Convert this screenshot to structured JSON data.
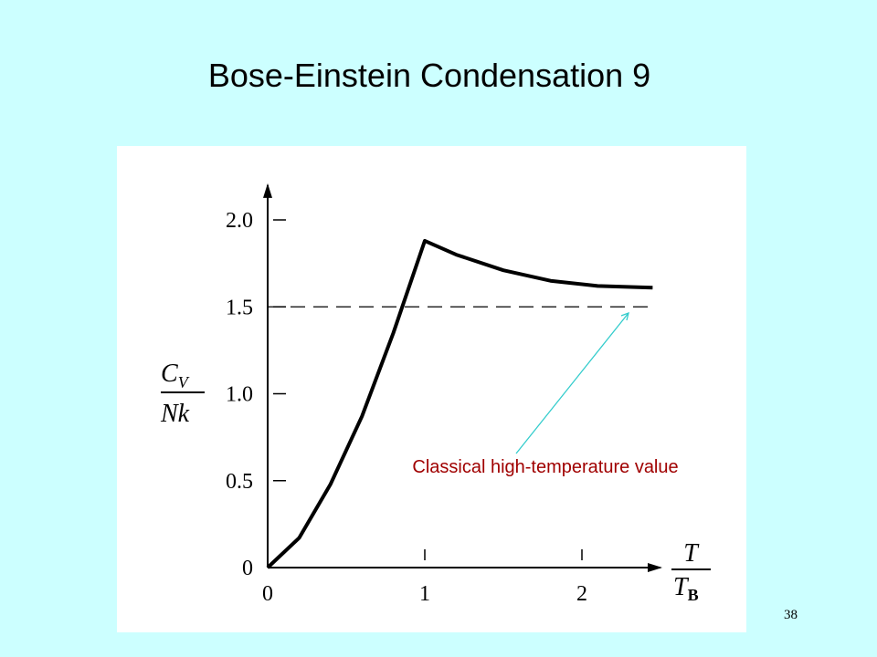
{
  "title": "Bose-Einstein Condensation 9",
  "page_number": "38",
  "chart_data": {
    "type": "line",
    "x": [
      0,
      0.2,
      0.4,
      0.6,
      0.8,
      1.0,
      1.2,
      1.5,
      1.8,
      2.1,
      2.45
    ],
    "values": [
      0,
      0.17,
      0.48,
      0.87,
      1.35,
      1.88,
      1.8,
      1.71,
      1.65,
      1.62,
      1.61
    ],
    "color": "#000000",
    "reference_line": 1.5,
    "xlim": [
      0,
      2.5
    ],
    "ylim": [
      0,
      2.2
    ],
    "xticks": [
      0,
      1,
      2
    ],
    "yticks": [
      0,
      0.5,
      {
        "value": 1,
        "label": "1.0"
      },
      1.5,
      {
        "value": 2,
        "label": "2.0"
      }
    ],
    "ylabel": {
      "top": "C",
      "top_sub": "V",
      "bottom": "Nk"
    },
    "xlabel": {
      "top": "T",
      "bottom": "T",
      "bottom_sub": "B"
    },
    "annotation": "Classical high-temperature value",
    "annotation_color": "#a00000",
    "arrow_color": "#33cccc"
  }
}
